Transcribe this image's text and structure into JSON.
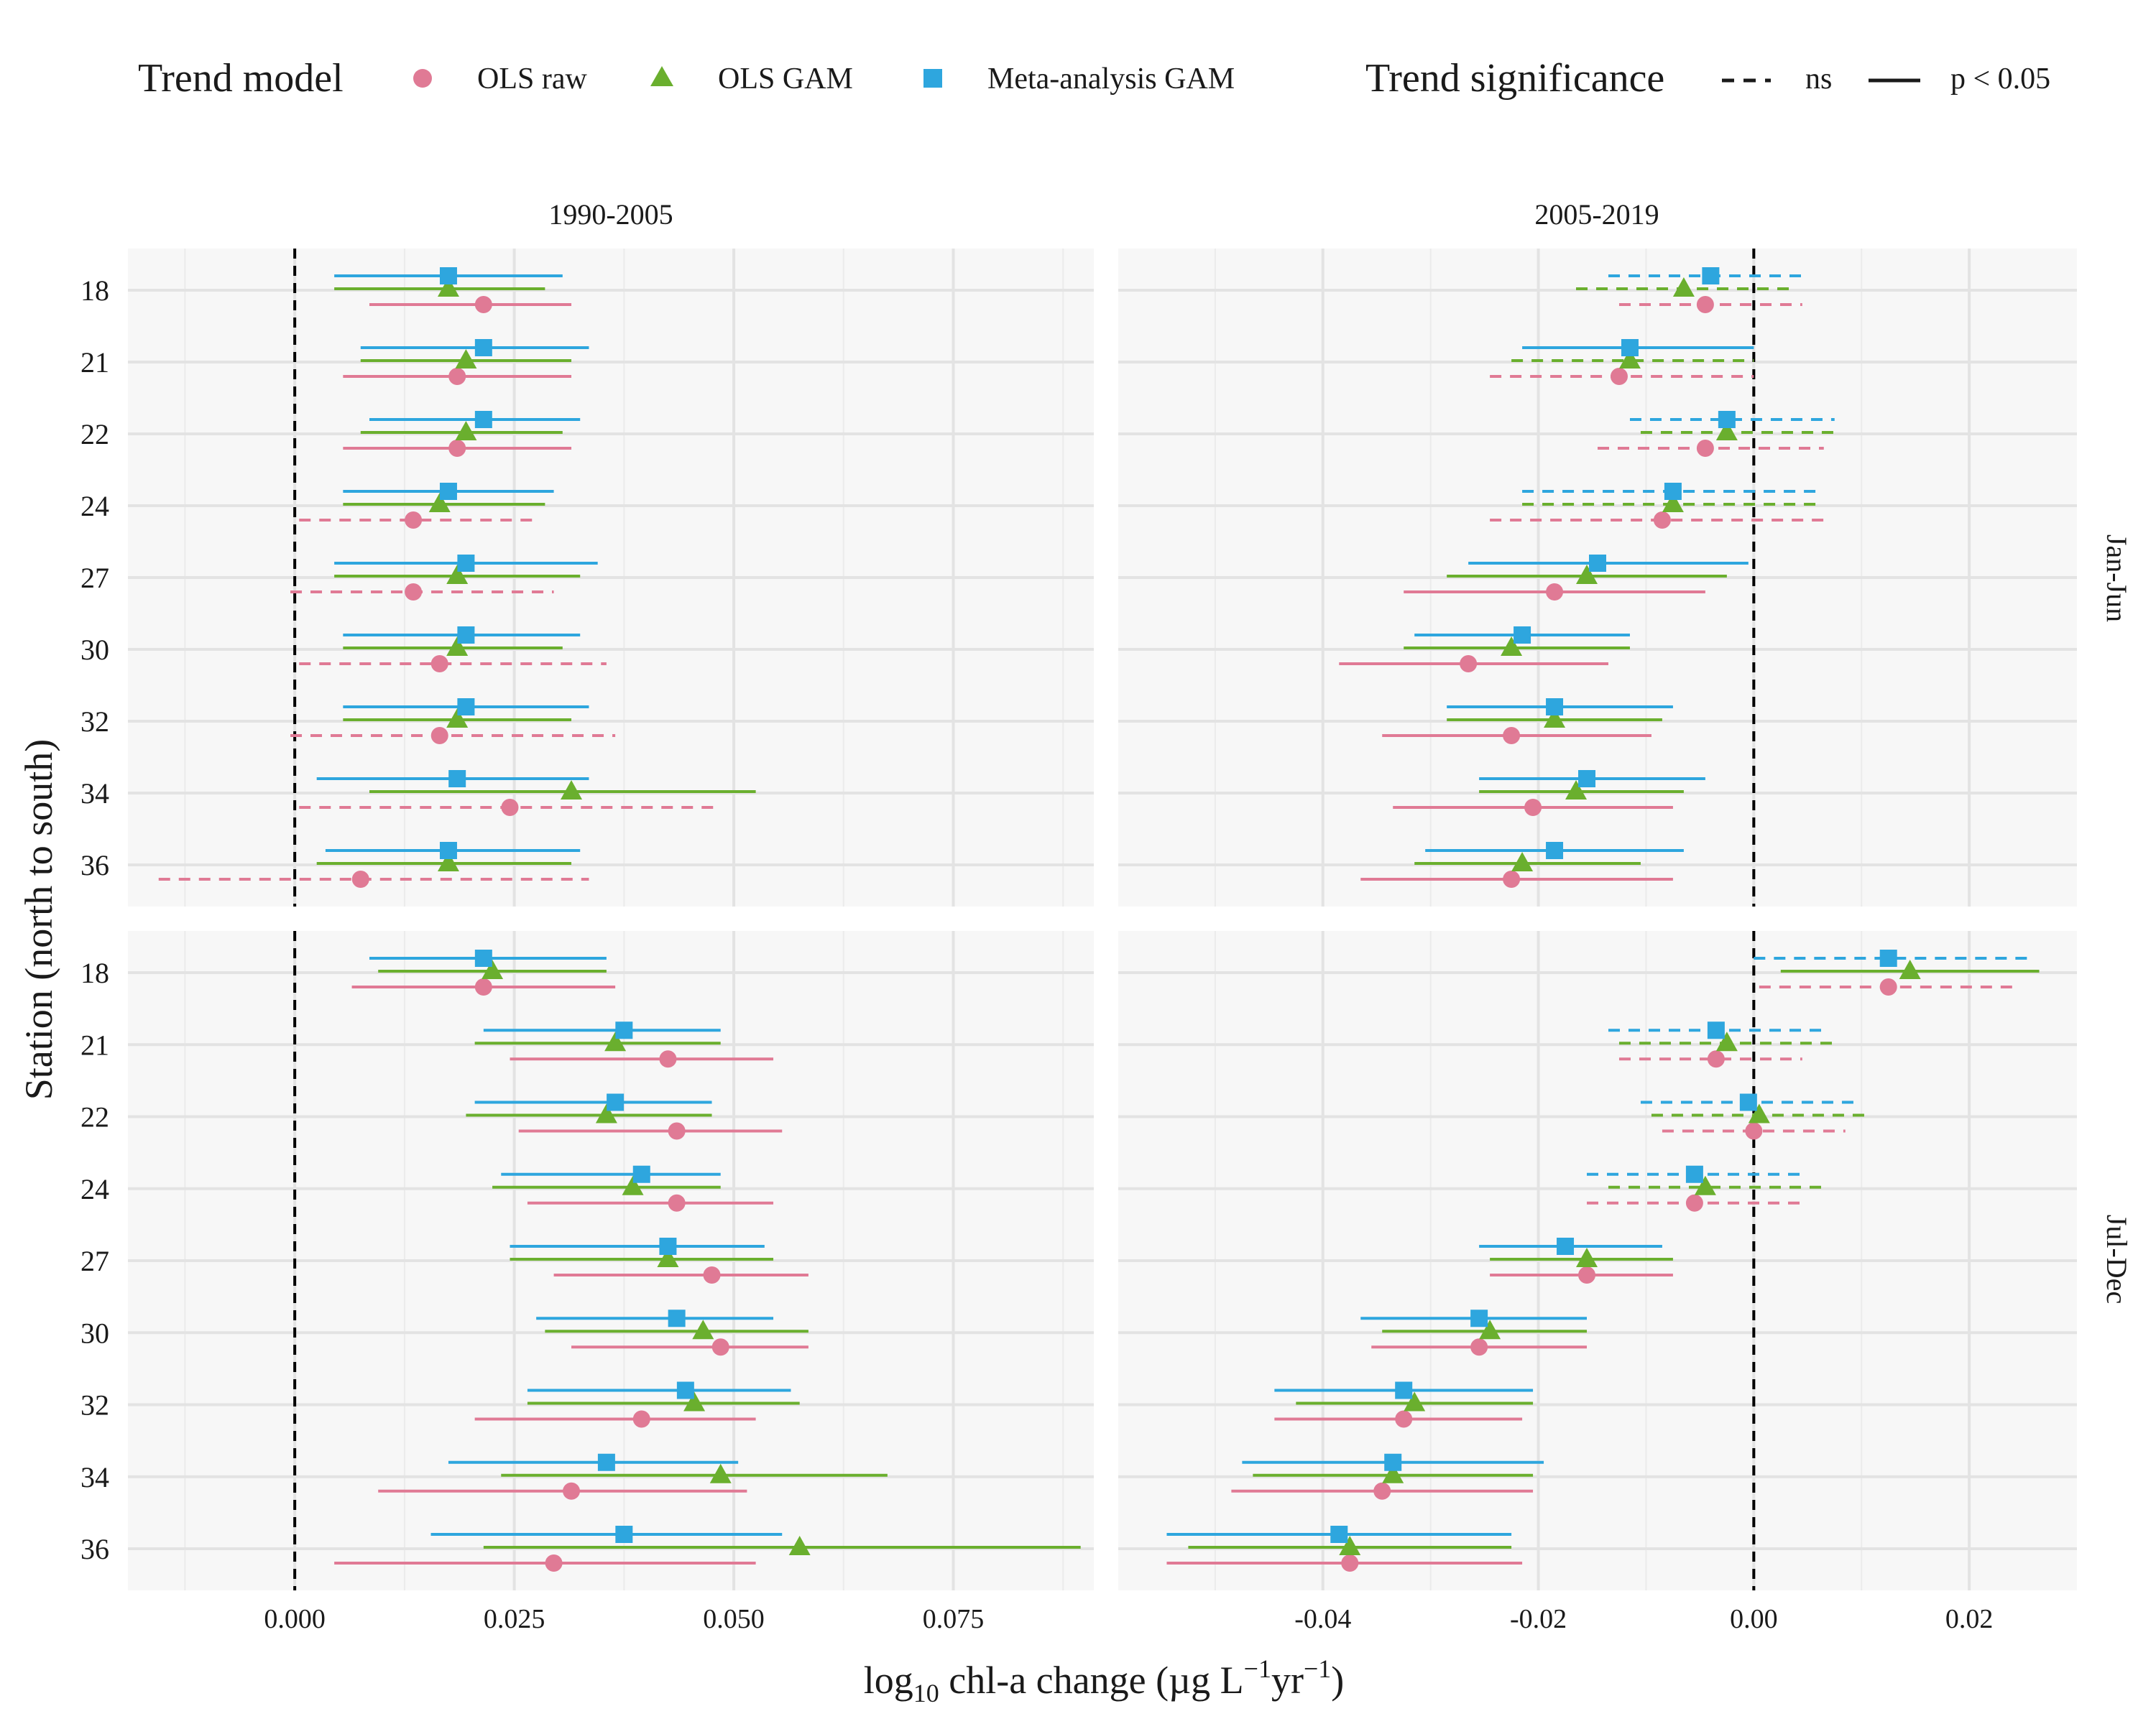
{
  "chart_data": {
    "type": "scatter",
    "subtype": "faceted-dot-interval",
    "legend": {
      "model_title": "Trend model",
      "models": [
        {
          "key": "ols_raw",
          "label": "OLS raw",
          "shape": "circle",
          "color": "#E07A95"
        },
        {
          "key": "ols_gam",
          "label": "OLS GAM",
          "shape": "triangle",
          "color": "#6AAF2E"
        },
        {
          "key": "meta_gam",
          "label": "Meta-analysis GAM",
          "shape": "square",
          "color": "#2EA6DE"
        }
      ],
      "sig_title": "Trend significance",
      "sig_items": [
        {
          "key": "ns",
          "label": "ns",
          "dash": true
        },
        {
          "key": "sig",
          "label": "p < 0.05",
          "dash": false
        }
      ]
    },
    "ylabel": "Station (north to south)",
    "xlabel_parts": {
      "log": "log",
      "sub": "10",
      "mid": " chl-a change (µg L",
      "sup1": "−1",
      "mid2": "yr",
      "sup2": "−1",
      "end": ")"
    },
    "stations": [
      "18",
      "21",
      "22",
      "24",
      "27",
      "30",
      "32",
      "34",
      "36"
    ],
    "columns": [
      {
        "title": "1990-2005",
        "xlim": [
          -0.019,
          0.091
        ],
        "ticks": [
          0.0,
          0.025,
          0.05,
          0.075
        ],
        "tick_labels": [
          "0.000",
          "0.025",
          "0.050",
          "0.075"
        ],
        "minor_ticks": [
          -0.0125,
          0.0125,
          0.0375,
          0.0625,
          0.0875
        ]
      },
      {
        "title": "2005-2019",
        "xlim": [
          -0.059,
          0.03
        ],
        "ticks": [
          -0.04,
          -0.02,
          0.0,
          0.02
        ],
        "tick_labels": [
          "-0.04",
          "-0.02",
          "0.00",
          "0.02"
        ],
        "minor_ticks": [
          -0.05,
          -0.03,
          -0.01,
          0.01,
          0.03
        ]
      }
    ],
    "rows": [
      "Jan-Jun",
      "Jul-Dec"
    ],
    "panels": [
      {
        "row": 0,
        "col": 0,
        "data": {
          "meta_gam": [
            [
              0.0175,
              0.0045,
              0.0305,
              "s"
            ],
            [
              0.0215,
              0.0075,
              0.0335,
              "s"
            ],
            [
              0.0215,
              0.0085,
              0.0325,
              "s"
            ],
            [
              0.0175,
              0.0055,
              0.0295,
              "s"
            ],
            [
              0.0195,
              0.0045,
              0.0345,
              "s"
            ],
            [
              0.0195,
              0.0055,
              0.0325,
              "s"
            ],
            [
              0.0195,
              0.0055,
              0.0335,
              "s"
            ],
            [
              0.0185,
              0.0025,
              0.0335,
              "s"
            ],
            [
              0.0175,
              0.0035,
              0.0325,
              "s"
            ]
          ],
          "ols_gam": [
            [
              0.0175,
              0.0045,
              0.0285,
              "s"
            ],
            [
              0.0195,
              0.0075,
              0.0315,
              "s"
            ],
            [
              0.0195,
              0.0075,
              0.0305,
              "s"
            ],
            [
              0.0165,
              0.0055,
              0.0285,
              "s"
            ],
            [
              0.0185,
              0.0045,
              0.0325,
              "s"
            ],
            [
              0.0185,
              0.0055,
              0.0305,
              "s"
            ],
            [
              0.0185,
              0.0055,
              0.0315,
              "s"
            ],
            [
              0.0315,
              0.0085,
              0.0525,
              "s"
            ],
            [
              0.0175,
              0.0025,
              0.0315,
              "s"
            ]
          ],
          "ols_raw": [
            [
              0.0215,
              0.0085,
              0.0315,
              "s"
            ],
            [
              0.0185,
              0.0055,
              0.0315,
              "s"
            ],
            [
              0.0185,
              0.0055,
              0.0315,
              "s"
            ],
            [
              0.0135,
              0.0005,
              0.0275,
              "ns"
            ],
            [
              0.0135,
              -0.0005,
              0.0295,
              "ns"
            ],
            [
              0.0165,
              0.0005,
              0.0355,
              "ns"
            ],
            [
              0.0165,
              -0.0005,
              0.0365,
              "ns"
            ],
            [
              0.0245,
              0.0005,
              0.0485,
              "ns"
            ],
            [
              0.0075,
              -0.0155,
              0.0335,
              "ns"
            ]
          ]
        }
      },
      {
        "row": 0,
        "col": 1,
        "data": {
          "meta_gam": [
            [
              -0.004,
              -0.0135,
              0.0045,
              "ns"
            ],
            [
              -0.0115,
              -0.0215,
              0.0,
              "s"
            ],
            [
              -0.0025,
              -0.0115,
              0.0075,
              "ns"
            ],
            [
              -0.0075,
              -0.0215,
              0.0065,
              "ns"
            ],
            [
              -0.0145,
              -0.0265,
              -0.0005,
              "s"
            ],
            [
              -0.0215,
              -0.0315,
              -0.0115,
              "s"
            ],
            [
              -0.0185,
              -0.0285,
              -0.0075,
              "s"
            ],
            [
              -0.0155,
              -0.0255,
              -0.0045,
              "s"
            ],
            [
              -0.0185,
              -0.0305,
              -0.0065,
              "s"
            ]
          ],
          "ols_gam": [
            [
              -0.0065,
              -0.0165,
              0.0035,
              "ns"
            ],
            [
              -0.0115,
              -0.0225,
              0.0,
              "ns"
            ],
            [
              -0.0025,
              -0.0105,
              0.0075,
              "ns"
            ],
            [
              -0.0075,
              -0.0215,
              0.0065,
              "ns"
            ],
            [
              -0.0155,
              -0.0285,
              -0.0025,
              "s"
            ],
            [
              -0.0225,
              -0.0325,
              -0.0115,
              "s"
            ],
            [
              -0.0185,
              -0.0285,
              -0.0085,
              "s"
            ],
            [
              -0.0165,
              -0.0255,
              -0.0065,
              "s"
            ],
            [
              -0.0215,
              -0.0315,
              -0.0105,
              "s"
            ]
          ],
          "ols_raw": [
            [
              -0.0045,
              -0.0125,
              0.0045,
              "ns"
            ],
            [
              -0.0125,
              -0.0245,
              0.0,
              "ns"
            ],
            [
              -0.0045,
              -0.0145,
              0.0065,
              "ns"
            ],
            [
              -0.0085,
              -0.0245,
              0.0065,
              "ns"
            ],
            [
              -0.0185,
              -0.0325,
              -0.0045,
              "s"
            ],
            [
              -0.0265,
              -0.0385,
              -0.0135,
              "s"
            ],
            [
              -0.0225,
              -0.0345,
              -0.0095,
              "s"
            ],
            [
              -0.0205,
              -0.0335,
              -0.0075,
              "s"
            ],
            [
              -0.0225,
              -0.0365,
              -0.0075,
              "s"
            ]
          ]
        }
      },
      {
        "row": 1,
        "col": 0,
        "data": {
          "meta_gam": [
            [
              0.0215,
              0.0085,
              0.0355,
              "s"
            ],
            [
              0.0375,
              0.0215,
              0.0485,
              "s"
            ],
            [
              0.0365,
              0.0205,
              0.0475,
              "s"
            ],
            [
              0.0395,
              0.0235,
              0.0485,
              "s"
            ],
            [
              0.0425,
              0.0245,
              0.0535,
              "s"
            ],
            [
              0.0435,
              0.0275,
              0.0545,
              "s"
            ],
            [
              0.0445,
              0.0265,
              0.0565,
              "s"
            ],
            [
              0.0355,
              0.0175,
              0.0505,
              "s"
            ],
            [
              0.0375,
              0.0155,
              0.0555,
              "s"
            ]
          ],
          "ols_gam": [
            [
              0.0225,
              0.0095,
              0.0355,
              "s"
            ],
            [
              0.0365,
              0.0205,
              0.0485,
              "s"
            ],
            [
              0.0355,
              0.0195,
              0.0475,
              "s"
            ],
            [
              0.0385,
              0.0225,
              0.0485,
              "s"
            ],
            [
              0.0425,
              0.0245,
              0.0545,
              "s"
            ],
            [
              0.0465,
              0.0285,
              0.0585,
              "s"
            ],
            [
              0.0455,
              0.0265,
              0.0575,
              "s"
            ],
            [
              0.0485,
              0.0235,
              0.0675,
              "s"
            ],
            [
              0.0575,
              0.0215,
              0.0895,
              "s"
            ]
          ],
          "ols_raw": [
            [
              0.0215,
              0.0065,
              0.0365,
              "s"
            ],
            [
              0.0425,
              0.0245,
              0.0545,
              "s"
            ],
            [
              0.0435,
              0.0255,
              0.0555,
              "s"
            ],
            [
              0.0435,
              0.0265,
              0.0545,
              "s"
            ],
            [
              0.0475,
              0.0295,
              0.0585,
              "s"
            ],
            [
              0.0485,
              0.0315,
              0.0585,
              "s"
            ],
            [
              0.0395,
              0.0205,
              0.0525,
              "s"
            ],
            [
              0.0315,
              0.0095,
              0.0515,
              "s"
            ],
            [
              0.0295,
              0.0045,
              0.0525,
              "s"
            ]
          ]
        }
      },
      {
        "row": 1,
        "col": 1,
        "data": {
          "meta_gam": [
            [
              0.0125,
              0.0,
              0.0255,
              "ns"
            ],
            [
              -0.0035,
              -0.0135,
              0.0065,
              "ns"
            ],
            [
              -0.0005,
              -0.0105,
              0.0095,
              "ns"
            ],
            [
              -0.0055,
              -0.0155,
              0.0045,
              "ns"
            ],
            [
              -0.0175,
              -0.0255,
              -0.0085,
              "s"
            ],
            [
              -0.0255,
              -0.0365,
              -0.0155,
              "s"
            ],
            [
              -0.0325,
              -0.0445,
              -0.0205,
              "s"
            ],
            [
              -0.0335,
              -0.0475,
              -0.0195,
              "s"
            ],
            [
              -0.0385,
              -0.0545,
              -0.0225,
              "s"
            ]
          ],
          "ols_gam": [
            [
              0.0145,
              0.0025,
              0.0265,
              "s"
            ],
            [
              -0.0025,
              -0.0125,
              0.0075,
              "ns"
            ],
            [
              0.0005,
              -0.0095,
              0.0105,
              "ns"
            ],
            [
              -0.0045,
              -0.0135,
              0.0065,
              "ns"
            ],
            [
              -0.0155,
              -0.0245,
              -0.0075,
              "s"
            ],
            [
              -0.0245,
              -0.0345,
              -0.0155,
              "s"
            ],
            [
              -0.0315,
              -0.0425,
              -0.0205,
              "s"
            ],
            [
              -0.0335,
              -0.0465,
              -0.0205,
              "s"
            ],
            [
              -0.0375,
              -0.0525,
              -0.0225,
              "s"
            ]
          ],
          "ols_raw": [
            [
              0.0125,
              0.0005,
              0.0245,
              "ns"
            ],
            [
              -0.0035,
              -0.0125,
              0.0045,
              "ns"
            ],
            [
              0.0,
              -0.0085,
              0.0085,
              "ns"
            ],
            [
              -0.0055,
              -0.0155,
              0.0045,
              "ns"
            ],
            [
              -0.0155,
              -0.0245,
              -0.0075,
              "s"
            ],
            [
              -0.0255,
              -0.0355,
              -0.0155,
              "s"
            ],
            [
              -0.0325,
              -0.0445,
              -0.0215,
              "s"
            ],
            [
              -0.0345,
              -0.0485,
              -0.0205,
              "s"
            ],
            [
              -0.0375,
              -0.0545,
              -0.0215,
              "s"
            ]
          ]
        }
      }
    ]
  }
}
